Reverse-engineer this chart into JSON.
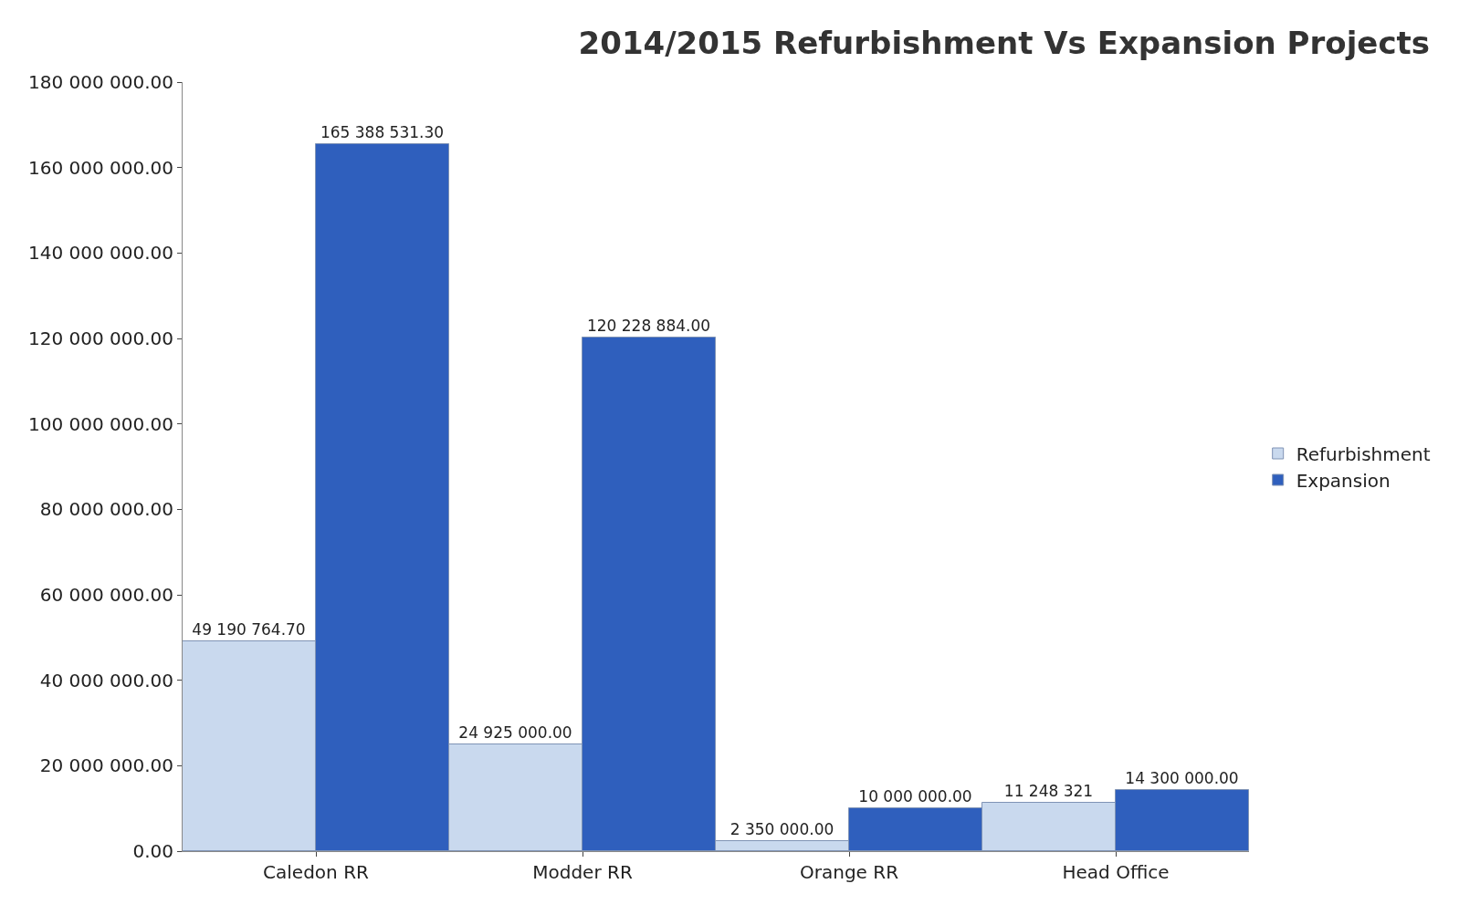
{
  "chart_data": {
    "type": "bar",
    "title": "2014/2015 Refurbishment Vs Expansion Projects",
    "categories": [
      "Caledon RR",
      "Modder RR",
      "Orange RR",
      "Head Office"
    ],
    "series": [
      {
        "name": "Refurbishment",
        "color": "#c9d9ee",
        "values": [
          49190764.7,
          24925000.0,
          2350000.0,
          11248321
        ],
        "value_labels": [
          "49 190 764.70",
          "24 925 000.00",
          "2 350 000.00",
          "11 248 321"
        ]
      },
      {
        "name": "Expansion",
        "color": "#2f5fbd",
        "values": [
          165388531.3,
          120228884.0,
          10000000.0,
          14300000.0
        ],
        "value_labels": [
          "165 388 531.30",
          "120 228 884.00",
          "10 000 000.00",
          "14 300 000.00"
        ]
      }
    ],
    "ylim": [
      0,
      180000000
    ],
    "yticks": [
      {
        "value": 0,
        "label": "0.00"
      },
      {
        "value": 20000000,
        "label": "20 000 000.00"
      },
      {
        "value": 40000000,
        "label": "40 000 000.00"
      },
      {
        "value": 60000000,
        "label": "60 000 000.00"
      },
      {
        "value": 80000000,
        "label": "80 000 000.00"
      },
      {
        "value": 100000000,
        "label": "100 000 000.00"
      },
      {
        "value": 120000000,
        "label": "120 000 000.00"
      },
      {
        "value": 140000000,
        "label": "140 000 000.00"
      },
      {
        "value": 160000000,
        "label": "160 000 000.00"
      },
      {
        "value": 180000000,
        "label": "180 000 000.00"
      }
    ],
    "grid": false,
    "legend": "right"
  }
}
